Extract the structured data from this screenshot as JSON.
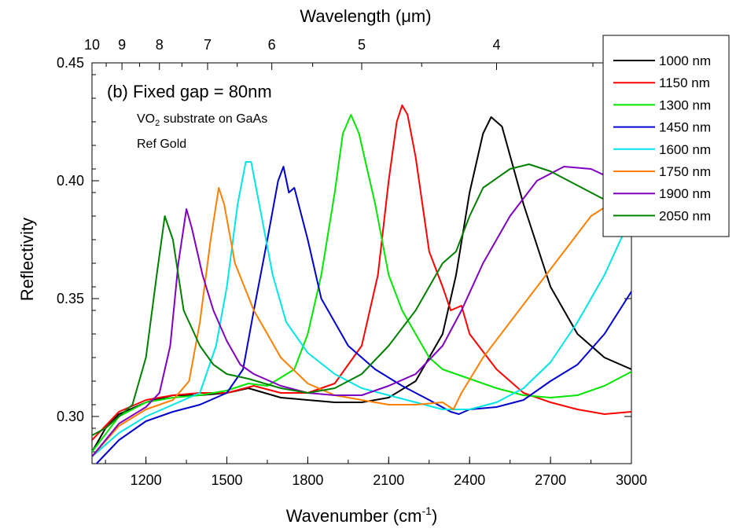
{
  "chart_data": {
    "type": "line",
    "xlabel": "Wavenumber (cm",
    "xlabel_sup": "-1",
    "xlabel_end": ")",
    "x2label": "Wavelength (μm)",
    "ylabel": "Reflectivity",
    "xlim": [
      1000,
      3000
    ],
    "ylim": [
      0.28,
      0.45
    ],
    "x_ticks": [
      "1200",
      "1500",
      "1800",
      "2100",
      "2400",
      "2700",
      "3000"
    ],
    "y_ticks": [
      "0.30",
      "0.35",
      "0.40",
      "0.45"
    ],
    "x2_ticks": [
      "10",
      "9",
      "8",
      "7",
      "6",
      "5",
      "4"
    ],
    "annotation_title": "(b)  Fixed gap = 80nm",
    "annotation_line1_a": "VO",
    "annotation_line1_sub": "2",
    "annotation_line1_b": " substrate on GaAs",
    "annotation_line2": "Ref Gold",
    "legend_position": "top-right",
    "series": [
      {
        "name": "1000 nm",
        "color": "#000000",
        "points": [
          [
            1000,
            0.285
          ],
          [
            1050,
            0.295
          ],
          [
            1100,
            0.301
          ],
          [
            1200,
            0.306
          ],
          [
            1300,
            0.309
          ],
          [
            1400,
            0.309
          ],
          [
            1500,
            0.31
          ],
          [
            1580,
            0.312
          ],
          [
            1700,
            0.308
          ],
          [
            1900,
            0.306
          ],
          [
            2000,
            0.306
          ],
          [
            2100,
            0.308
          ],
          [
            2200,
            0.315
          ],
          [
            2300,
            0.335
          ],
          [
            2350,
            0.36
          ],
          [
            2400,
            0.395
          ],
          [
            2450,
            0.42
          ],
          [
            2480,
            0.427
          ],
          [
            2520,
            0.423
          ],
          [
            2600,
            0.39
          ],
          [
            2700,
            0.355
          ],
          [
            2800,
            0.335
          ],
          [
            2900,
            0.325
          ],
          [
            3000,
            0.32
          ]
        ]
      },
      {
        "name": "1150 nm",
        "color": "#ff0000",
        "points": [
          [
            1000,
            0.29
          ],
          [
            1050,
            0.296
          ],
          [
            1100,
            0.302
          ],
          [
            1200,
            0.307
          ],
          [
            1300,
            0.309
          ],
          [
            1400,
            0.31
          ],
          [
            1500,
            0.31
          ],
          [
            1600,
            0.313
          ],
          [
            1700,
            0.31
          ],
          [
            1800,
            0.31
          ],
          [
            1900,
            0.314
          ],
          [
            2000,
            0.33
          ],
          [
            2060,
            0.36
          ],
          [
            2100,
            0.4
          ],
          [
            2130,
            0.425
          ],
          [
            2150,
            0.432
          ],
          [
            2170,
            0.428
          ],
          [
            2200,
            0.41
          ],
          [
            2250,
            0.37
          ],
          [
            2300,
            0.355
          ],
          [
            2330,
            0.345
          ],
          [
            2370,
            0.347
          ],
          [
            2400,
            0.335
          ],
          [
            2500,
            0.32
          ],
          [
            2600,
            0.31
          ],
          [
            2700,
            0.306
          ],
          [
            2800,
            0.303
          ],
          [
            2900,
            0.301
          ],
          [
            3000,
            0.302
          ]
        ]
      },
      {
        "name": "1300 nm",
        "color": "#00e600",
        "points": [
          [
            1000,
            0.285
          ],
          [
            1100,
            0.3
          ],
          [
            1200,
            0.306
          ],
          [
            1300,
            0.308
          ],
          [
            1400,
            0.309
          ],
          [
            1500,
            0.311
          ],
          [
            1580,
            0.314
          ],
          [
            1650,
            0.313
          ],
          [
            1750,
            0.32
          ],
          [
            1800,
            0.335
          ],
          [
            1850,
            0.36
          ],
          [
            1900,
            0.395
          ],
          [
            1930,
            0.42
          ],
          [
            1960,
            0.428
          ],
          [
            1990,
            0.42
          ],
          [
            2050,
            0.39
          ],
          [
            2100,
            0.36
          ],
          [
            2150,
            0.345
          ],
          [
            2200,
            0.335
          ],
          [
            2250,
            0.325
          ],
          [
            2300,
            0.32
          ],
          [
            2350,
            0.318
          ],
          [
            2400,
            0.316
          ],
          [
            2500,
            0.312
          ],
          [
            2600,
            0.309
          ],
          [
            2700,
            0.308
          ],
          [
            2800,
            0.309
          ],
          [
            2900,
            0.313
          ],
          [
            3000,
            0.319
          ]
        ]
      },
      {
        "name": "1450 nm",
        "color": "#0000cc",
        "points": [
          [
            1000,
            0.278
          ],
          [
            1100,
            0.29
          ],
          [
            1200,
            0.298
          ],
          [
            1300,
            0.302
          ],
          [
            1400,
            0.305
          ],
          [
            1500,
            0.31
          ],
          [
            1560,
            0.32
          ],
          [
            1600,
            0.345
          ],
          [
            1650,
            0.375
          ],
          [
            1690,
            0.4
          ],
          [
            1710,
            0.406
          ],
          [
            1730,
            0.395
          ],
          [
            1750,
            0.397
          ],
          [
            1800,
            0.375
          ],
          [
            1850,
            0.35
          ],
          [
            1950,
            0.33
          ],
          [
            2050,
            0.32
          ],
          [
            2150,
            0.313
          ],
          [
            2250,
            0.307
          ],
          [
            2330,
            0.302
          ],
          [
            2360,
            0.301
          ],
          [
            2400,
            0.303
          ],
          [
            2500,
            0.304
          ],
          [
            2600,
            0.307
          ],
          [
            2700,
            0.315
          ],
          [
            2800,
            0.322
          ],
          [
            2900,
            0.335
          ],
          [
            3000,
            0.353
          ]
        ]
      },
      {
        "name": "1600 nm",
        "color": "#00e5e5",
        "points": [
          [
            1000,
            0.283
          ],
          [
            1100,
            0.293
          ],
          [
            1200,
            0.3
          ],
          [
            1300,
            0.305
          ],
          [
            1400,
            0.31
          ],
          [
            1460,
            0.33
          ],
          [
            1500,
            0.355
          ],
          [
            1540,
            0.39
          ],
          [
            1570,
            0.408
          ],
          [
            1590,
            0.408
          ],
          [
            1620,
            0.39
          ],
          [
            1670,
            0.36
          ],
          [
            1720,
            0.34
          ],
          [
            1800,
            0.327
          ],
          [
            1900,
            0.318
          ],
          [
            2000,
            0.312
          ],
          [
            2100,
            0.309
          ],
          [
            2200,
            0.306
          ],
          [
            2300,
            0.303
          ],
          [
            2400,
            0.303
          ],
          [
            2500,
            0.306
          ],
          [
            2600,
            0.312
          ],
          [
            2700,
            0.323
          ],
          [
            2800,
            0.34
          ],
          [
            2900,
            0.36
          ],
          [
            3000,
            0.385
          ]
        ]
      },
      {
        "name": "1750 nm",
        "color": "#ff8000",
        "points": [
          [
            1000,
            0.283
          ],
          [
            1100,
            0.296
          ],
          [
            1200,
            0.303
          ],
          [
            1300,
            0.307
          ],
          [
            1360,
            0.315
          ],
          [
            1400,
            0.34
          ],
          [
            1440,
            0.375
          ],
          [
            1470,
            0.397
          ],
          [
            1490,
            0.39
          ],
          [
            1530,
            0.365
          ],
          [
            1600,
            0.345
          ],
          [
            1650,
            0.335
          ],
          [
            1700,
            0.325
          ],
          [
            1800,
            0.314
          ],
          [
            1900,
            0.309
          ],
          [
            2000,
            0.307
          ],
          [
            2100,
            0.305
          ],
          [
            2200,
            0.305
          ],
          [
            2300,
            0.306
          ],
          [
            2340,
            0.303
          ],
          [
            2370,
            0.31
          ],
          [
            2450,
            0.325
          ],
          [
            2550,
            0.34
          ],
          [
            2650,
            0.355
          ],
          [
            2750,
            0.37
          ],
          [
            2850,
            0.385
          ],
          [
            3000,
            0.396
          ]
        ]
      },
      {
        "name": "1900 nm",
        "color": "#8000c0",
        "points": [
          [
            1000,
            0.283
          ],
          [
            1100,
            0.297
          ],
          [
            1200,
            0.304
          ],
          [
            1250,
            0.31
          ],
          [
            1290,
            0.33
          ],
          [
            1320,
            0.365
          ],
          [
            1350,
            0.388
          ],
          [
            1370,
            0.38
          ],
          [
            1410,
            0.36
          ],
          [
            1450,
            0.345
          ],
          [
            1500,
            0.332
          ],
          [
            1550,
            0.322
          ],
          [
            1600,
            0.318
          ],
          [
            1700,
            0.313
          ],
          [
            1800,
            0.31
          ],
          [
            1900,
            0.309
          ],
          [
            2000,
            0.309
          ],
          [
            2100,
            0.313
          ],
          [
            2200,
            0.318
          ],
          [
            2300,
            0.33
          ],
          [
            2370,
            0.345
          ],
          [
            2450,
            0.365
          ],
          [
            2550,
            0.385
          ],
          [
            2650,
            0.4
          ],
          [
            2750,
            0.406
          ],
          [
            2850,
            0.405
          ],
          [
            3000,
            0.397
          ]
        ]
      },
      {
        "name": "2050 nm",
        "color": "#008000",
        "points": [
          [
            1000,
            0.292
          ],
          [
            1050,
            0.295
          ],
          [
            1100,
            0.3
          ],
          [
            1150,
            0.305
          ],
          [
            1200,
            0.325
          ],
          [
            1240,
            0.36
          ],
          [
            1270,
            0.385
          ],
          [
            1300,
            0.375
          ],
          [
            1340,
            0.345
          ],
          [
            1400,
            0.33
          ],
          [
            1450,
            0.322
          ],
          [
            1500,
            0.318
          ],
          [
            1580,
            0.316
          ],
          [
            1700,
            0.312
          ],
          [
            1800,
            0.31
          ],
          [
            1900,
            0.312
          ],
          [
            2000,
            0.318
          ],
          [
            2100,
            0.33
          ],
          [
            2200,
            0.345
          ],
          [
            2300,
            0.365
          ],
          [
            2350,
            0.37
          ],
          [
            2400,
            0.385
          ],
          [
            2450,
            0.397
          ],
          [
            2550,
            0.405
          ],
          [
            2620,
            0.407
          ],
          [
            2700,
            0.404
          ],
          [
            2800,
            0.398
          ],
          [
            2900,
            0.392
          ],
          [
            3000,
            0.388
          ]
        ]
      }
    ]
  }
}
